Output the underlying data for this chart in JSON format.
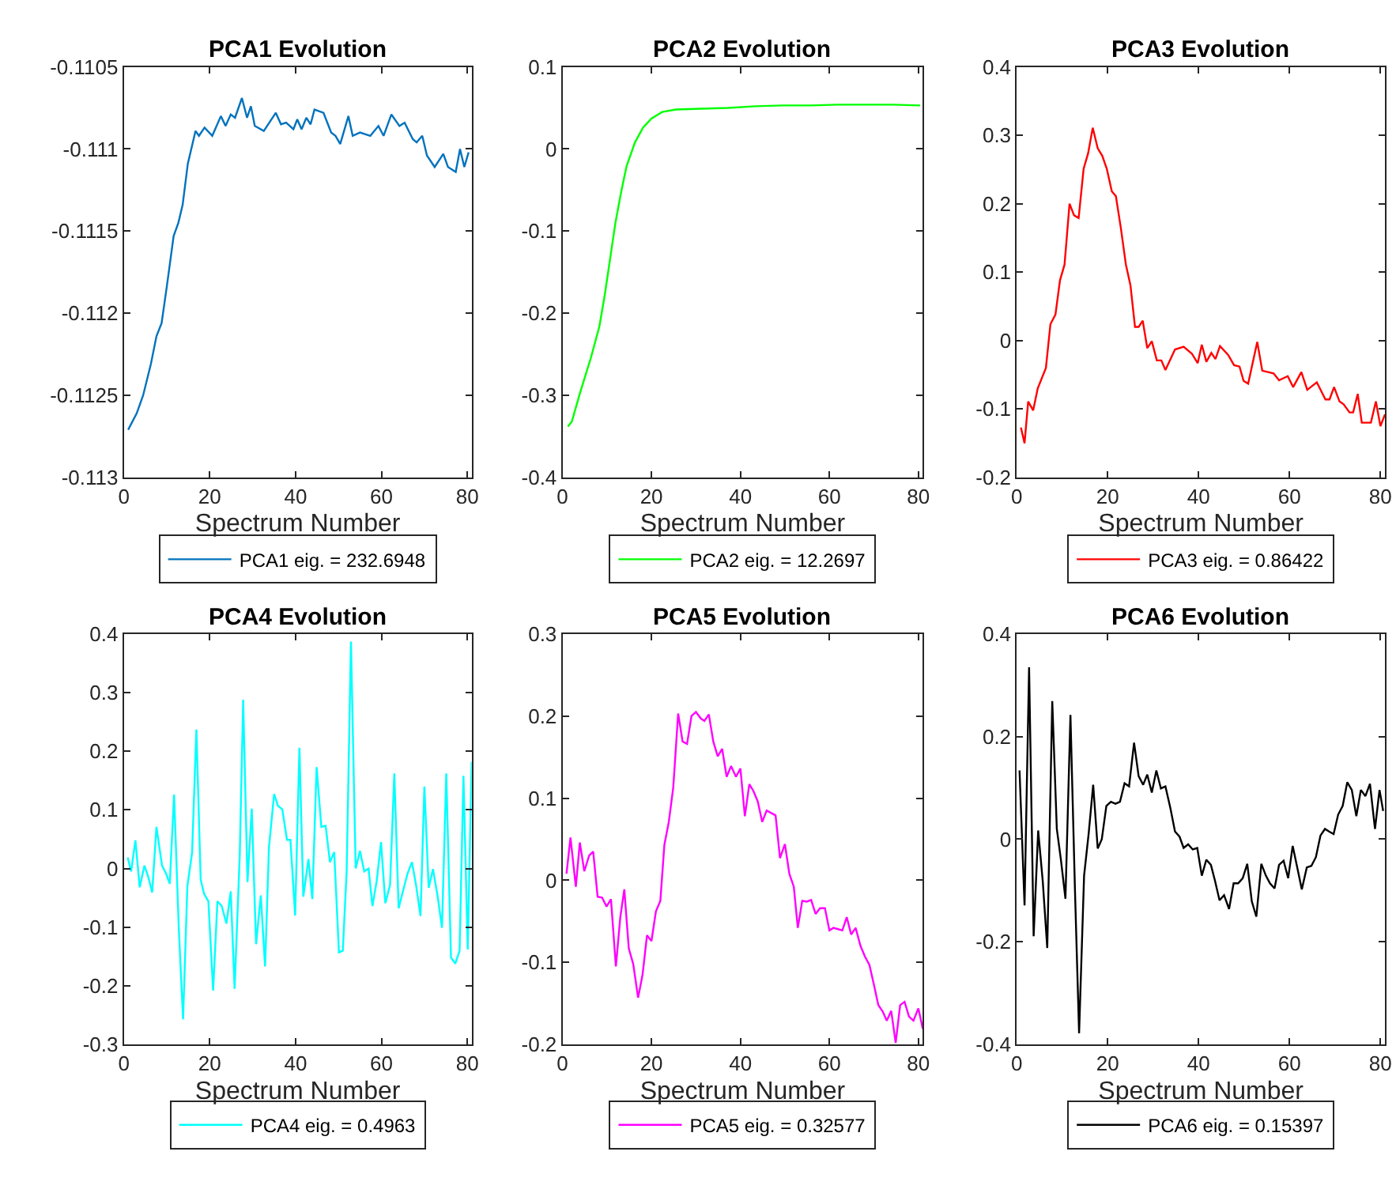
{
  "chart_data": [
    {
      "type": "line",
      "title": "PCA1 Evolution",
      "xlabel": "Spectrum Number",
      "xlim": [
        0,
        81
      ],
      "xticks": [
        0,
        20,
        40,
        60,
        80
      ],
      "ylim": [
        -0.113,
        -0.1105
      ],
      "yticks": [
        -0.113,
        -0.1125,
        -0.112,
        -0.1115,
        -0.111,
        -0.1105
      ],
      "legend": "bottom",
      "series": [
        {
          "name": "PCA1 eig. = 232.6948",
          "color": "#0072bd",
          "x": [
            1,
            3,
            4.5,
            6.3,
            7.6,
            8.8,
            10,
            11.6,
            12.7,
            13.7,
            14.9,
            16.7,
            17.5,
            18.8,
            20.6,
            22.6,
            23.7,
            24.9,
            25.9,
            27.5,
            28.7,
            29.6,
            30.5,
            32.6,
            35.4,
            36.6,
            37.8,
            39.5,
            40.4,
            41.4,
            42.5,
            43.5,
            44.4,
            46.5,
            48.3,
            49.3,
            50.4,
            52.3,
            53.3,
            55,
            57.4,
            59.3,
            60.5,
            62.3,
            64.2,
            65.4,
            67.3,
            68.2,
            69.5,
            70.6,
            72.4,
            74.4,
            75.5,
            77.3,
            78.3,
            79.3,
            80.3
          ],
          "values": [
            -0.11271,
            -0.11261,
            -0.1125,
            -0.11231,
            -0.11214,
            -0.11206,
            -0.11184,
            -0.11153,
            -0.11145,
            -0.11134,
            -0.11109,
            -0.11089,
            -0.11092,
            -0.11087,
            -0.11092,
            -0.1108,
            -0.11086,
            -0.11079,
            -0.11081,
            -0.11069,
            -0.11081,
            -0.11074,
            -0.11086,
            -0.11089,
            -0.11078,
            -0.11085,
            -0.11084,
            -0.11088,
            -0.11082,
            -0.11088,
            -0.11081,
            -0.11085,
            -0.11076,
            -0.11078,
            -0.1109,
            -0.11092,
            -0.11097,
            -0.1108,
            -0.11092,
            -0.1109,
            -0.11092,
            -0.11086,
            -0.11092,
            -0.11079,
            -0.11086,
            -0.11084,
            -0.11094,
            -0.11096,
            -0.11092,
            -0.11104,
            -0.11111,
            -0.11103,
            -0.11111,
            -0.11114,
            -0.111,
            -0.11111,
            -0.11102
          ]
        }
      ]
    },
    {
      "type": "line",
      "title": "PCA2 Evolution",
      "xlabel": "Spectrum Number",
      "xlim": [
        0,
        81
      ],
      "xticks": [
        0,
        20,
        40,
        60,
        80
      ],
      "ylim": [
        -0.4,
        0.1
      ],
      "yticks": [
        -0.4,
        -0.3,
        -0.2,
        -0.1,
        0,
        0.1
      ],
      "legend": "bottom",
      "series": [
        {
          "name": "PCA2 eig. = 12.2697",
          "color": "#00ff00",
          "x": [
            1.2,
            2.1,
            3.9,
            6.4,
            8.3,
            9.5,
            10.7,
            11.9,
            13.2,
            14.4,
            16.3,
            18.1,
            20,
            22.4,
            25.5,
            31.1,
            37.2,
            43.4,
            49.6,
            55.7,
            61.9,
            68.1,
            74.2,
            80.4
          ],
          "values": [
            -0.338,
            -0.332,
            -0.298,
            -0.254,
            -0.216,
            -0.178,
            -0.134,
            -0.09,
            -0.052,
            -0.021,
            0.008,
            0.026,
            0.037,
            0.045,
            0.048,
            0.049,
            0.05,
            0.052,
            0.053,
            0.053,
            0.054,
            0.054,
            0.054,
            0.053
          ]
        }
      ]
    },
    {
      "type": "line",
      "title": "PCA3 Evolution",
      "xlabel": "Spectrum Number",
      "xlim": [
        0,
        81
      ],
      "xticks": [
        0,
        20,
        40,
        60,
        80
      ],
      "ylim": [
        -0.2,
        0.4
      ],
      "yticks": [
        -0.2,
        -0.1,
        0,
        0.1,
        0.2,
        0.3,
        0.4
      ],
      "legend": "bottom",
      "series": [
        {
          "name": "PCA3 eig. = 0.86422",
          "color": "#ff0000",
          "x": [
            0.9,
            1.7,
            2.5,
            3.6,
            4.6,
            6.4,
            7.4,
            8.5,
            9.5,
            10.5,
            11.6,
            12.6,
            13.6,
            14.7,
            15.7,
            16.7,
            17.8,
            18.8,
            19.8,
            20.9,
            21.8,
            22.9,
            24,
            25,
            26,
            26.8,
            27.7,
            28.7,
            29.7,
            30.8,
            31.8,
            32.7,
            34.8,
            36.7,
            38.5,
            39.8,
            40.7,
            41.7,
            42.8,
            43.7,
            44.7,
            46.5,
            47.8,
            49,
            49.9,
            50.9,
            52.9,
            54,
            56.5,
            57.7,
            59.6,
            60.8,
            62.6,
            63.9,
            66,
            67.9,
            68.8,
            69.8,
            71,
            71.9,
            73.2,
            74,
            75,
            75.9,
            77.9,
            79,
            80,
            81
          ],
          "values": [
            -0.127,
            -0.15,
            -0.089,
            -0.102,
            -0.07,
            -0.04,
            0.024,
            0.038,
            0.088,
            0.111,
            0.2,
            0.183,
            0.179,
            0.251,
            0.274,
            0.311,
            0.281,
            0.27,
            0.251,
            0.218,
            0.211,
            0.164,
            0.111,
            0.081,
            0.02,
            0.02,
            0.029,
            -0.011,
            -0.001,
            -0.029,
            -0.029,
            -0.043,
            -0.013,
            -0.009,
            -0.019,
            -0.033,
            -0.006,
            -0.031,
            -0.018,
            -0.027,
            -0.008,
            -0.021,
            -0.036,
            -0.038,
            -0.059,
            -0.063,
            -0.002,
            -0.044,
            -0.048,
            -0.058,
            -0.052,
            -0.068,
            -0.046,
            -0.072,
            -0.061,
            -0.086,
            -0.086,
            -0.068,
            -0.089,
            -0.093,
            -0.105,
            -0.105,
            -0.078,
            -0.12,
            -0.12,
            -0.089,
            -0.125,
            -0.108
          ]
        }
      ]
    },
    {
      "type": "line",
      "title": "PCA4 Evolution",
      "xlabel": "Spectrum Number",
      "xlim": [
        0,
        81
      ],
      "xticks": [
        0,
        20,
        40,
        60,
        80
      ],
      "ylim": [
        -0.3,
        0.4
      ],
      "yticks": [
        -0.3,
        -0.2,
        -0.1,
        0,
        0.1,
        0.2,
        0.3,
        0.4
      ],
      "legend": "bottom",
      "series": [
        {
          "name": "PCA4 eig. = 0.4963",
          "color": "#00ffff",
          "x": [
            0.9,
            1.7,
            2.7,
            3.7,
            4.8,
            5.8,
            6.6,
            7.6,
            8.9,
            9.8,
            10.7,
            11.7,
            12.8,
            13.8,
            14.8,
            15.9,
            16.9,
            17.9,
            18.7,
            19.7,
            20.8,
            21.8,
            22.8,
            23.9,
            24.9,
            25.8,
            27,
            27.8,
            28.8,
            29.8,
            30.8,
            31.9,
            32.9,
            33.8,
            35,
            35.9,
            36.9,
            38,
            38.8,
            39.9,
            40.9,
            41.8,
            43,
            43.9,
            44.9,
            46,
            47,
            48,
            49,
            50.1,
            51,
            51.9,
            52.9,
            54,
            55,
            56,
            57,
            57.9,
            58.9,
            59.9,
            60.9,
            62,
            63,
            64,
            65,
            66.1,
            67.1,
            68.1,
            69.1,
            70,
            71,
            72,
            73.1,
            74.1,
            75.1,
            76.2,
            77.2,
            78.2,
            79.1,
            80.1,
            81
          ],
          "values": [
            0.019,
            -0.005,
            0.048,
            -0.032,
            0.005,
            -0.017,
            -0.041,
            0.071,
            0.005,
            -0.008,
            -0.026,
            0.126,
            -0.101,
            -0.257,
            -0.03,
            0.027,
            0.237,
            -0.019,
            -0.043,
            -0.056,
            -0.208,
            -0.056,
            -0.064,
            -0.094,
            -0.039,
            -0.205,
            0.023,
            0.288,
            -0.023,
            0.102,
            -0.129,
            -0.046,
            -0.167,
            0.036,
            0.127,
            0.107,
            0.101,
            0.049,
            0.049,
            -0.08,
            0.206,
            -0.048,
            0.016,
            -0.052,
            0.173,
            0.071,
            0.073,
            0.011,
            0.028,
            -0.143,
            -0.14,
            -0.004,
            0.387,
            0,
            0.03,
            -0.005,
            0,
            -0.064,
            -0.021,
            0.045,
            -0.059,
            -0.028,
            0.162,
            -0.068,
            -0.039,
            -0.008,
            0.011,
            -0.03,
            -0.081,
            0.14,
            -0.033,
            -0.001,
            -0.048,
            -0.101,
            0.162,
            -0.152,
            -0.162,
            -0.14,
            0.158,
            -0.138,
            0.182
          ]
        }
      ]
    },
    {
      "type": "line",
      "title": "PCA5 Evolution",
      "xlabel": "Spectrum Number",
      "xlim": [
        0,
        81
      ],
      "xticks": [
        0,
        20,
        40,
        60,
        80
      ],
      "ylim": [
        -0.2,
        0.3
      ],
      "yticks": [
        -0.2,
        -0.1,
        0,
        0.1,
        0.2,
        0.3
      ],
      "legend": "bottom",
      "series": [
        {
          "name": "PCA5 eig. = 0.32577",
          "color": "#ff00ff",
          "x": [
            0.9,
            1.8,
            3,
            3.9,
            4.9,
            6,
            6.9,
            7.9,
            8.9,
            9.9,
            10.9,
            12,
            13,
            13.9,
            14.9,
            15.9,
            17,
            18,
            19,
            20,
            21,
            22,
            22.9,
            23.9,
            24.9,
            26,
            27,
            28,
            29,
            30,
            31.1,
            31.9,
            32.9,
            33.9,
            34.9,
            35.9,
            36.9,
            37.9,
            39,
            40,
            41,
            42,
            42.9,
            43.9,
            44.9,
            45.9,
            47.9,
            48.9,
            50,
            51,
            52,
            52.9,
            53.9,
            54.9,
            55.9,
            56.9,
            57.9,
            59,
            60,
            60.9,
            62.9,
            63.9,
            64.9,
            65.9,
            67,
            68,
            69,
            70,
            71,
            72,
            72.9,
            73.9,
            74.9,
            75.9,
            76.9,
            77.9,
            78.9,
            80,
            81
          ],
          "values": [
            0.008,
            0.052,
            -0.008,
            0.046,
            0.011,
            0.03,
            0.035,
            -0.02,
            -0.021,
            -0.032,
            -0.023,
            -0.105,
            -0.045,
            -0.011,
            -0.083,
            -0.102,
            -0.143,
            -0.115,
            -0.067,
            -0.074,
            -0.038,
            -0.025,
            0.043,
            0.071,
            0.113,
            0.203,
            0.169,
            0.166,
            0.2,
            0.205,
            0.197,
            0.194,
            0.202,
            0.169,
            0.151,
            0.16,
            0.126,
            0.139,
            0.126,
            0.136,
            0.078,
            0.117,
            0.109,
            0.096,
            0.071,
            0.085,
            0.079,
            0.027,
            0.044,
            0.008,
            -0.008,
            -0.058,
            -0.025,
            -0.026,
            -0.024,
            -0.041,
            -0.034,
            -0.034,
            -0.061,
            -0.058,
            -0.061,
            -0.045,
            -0.066,
            -0.058,
            -0.08,
            -0.093,
            -0.103,
            -0.127,
            -0.152,
            -0.16,
            -0.171,
            -0.159,
            -0.198,
            -0.152,
            -0.148,
            -0.166,
            -0.171,
            -0.156,
            -0.181
          ]
        }
      ]
    },
    {
      "type": "line",
      "title": "PCA6 Evolution",
      "xlabel": "Spectrum Number",
      "xlim": [
        0,
        81
      ],
      "xticks": [
        0,
        20,
        40,
        60,
        80
      ],
      "ylim": [
        -0.4,
        0.4
      ],
      "yticks": [
        -0.4,
        -0.2,
        0,
        0.2,
        0.4
      ],
      "legend": "bottom",
      "series": [
        {
          "name": "PCA6 eig. = 0.15397",
          "color": "#000000",
          "x": [
            0.6,
            1.7,
            2.7,
            3.7,
            4.7,
            5.7,
            6.7,
            7.8,
            8.8,
            9.7,
            10.7,
            11.8,
            12.8,
            13.7,
            14.8,
            15.8,
            16.8,
            17.8,
            18.7,
            19.7,
            20.7,
            21.7,
            22.7,
            23.7,
            24.7,
            25.8,
            26.8,
            27.8,
            28.7,
            29.7,
            30.7,
            31.7,
            32.7,
            33.8,
            34.8,
            35.8,
            36.7,
            37.7,
            38.7,
            39.7,
            40.7,
            41.7,
            42.7,
            43.6,
            44.6,
            45.6,
            46.7,
            47.7,
            48.7,
            49.7,
            50.7,
            51.7,
            52.7,
            53.8,
            54.8,
            55.7,
            56.7,
            57.7,
            58.7,
            59.7,
            60.7,
            61.7,
            62.7,
            63.8,
            64.8,
            65.8,
            66.8,
            67.8,
            68.7,
            69.7,
            70.7,
            71.7,
            72.7,
            73.7,
            74.7,
            75.7,
            76.7,
            77.7,
            78.8,
            79.8,
            80.6
          ],
          "values": [
            0.134,
            -0.129,
            0.335,
            -0.189,
            0.017,
            -0.081,
            -0.212,
            0.269,
            0.02,
            -0.04,
            -0.116,
            0.242,
            -0.101,
            -0.378,
            -0.071,
            0.01,
            0.106,
            -0.018,
            0,
            0.065,
            0.073,
            0.069,
            0.073,
            0.109,
            0.103,
            0.188,
            0.123,
            0.106,
            0.126,
            0.091,
            0.134,
            0.099,
            0.103,
            0.06,
            0.015,
            0.005,
            -0.017,
            -0.01,
            -0.02,
            -0.017,
            -0.071,
            -0.04,
            -0.05,
            -0.081,
            -0.119,
            -0.109,
            -0.136,
            -0.086,
            -0.086,
            -0.076,
            -0.048,
            -0.121,
            -0.151,
            -0.048,
            -0.071,
            -0.086,
            -0.096,
            -0.05,
            -0.042,
            -0.076,
            -0.013,
            -0.055,
            -0.098,
            -0.055,
            -0.052,
            -0.035,
            0.007,
            0.02,
            0.015,
            0.01,
            0.048,
            0.065,
            0.111,
            0.096,
            0.045,
            0.096,
            0.084,
            0.108,
            0.02,
            0.096,
            0.055
          ]
        }
      ]
    }
  ]
}
